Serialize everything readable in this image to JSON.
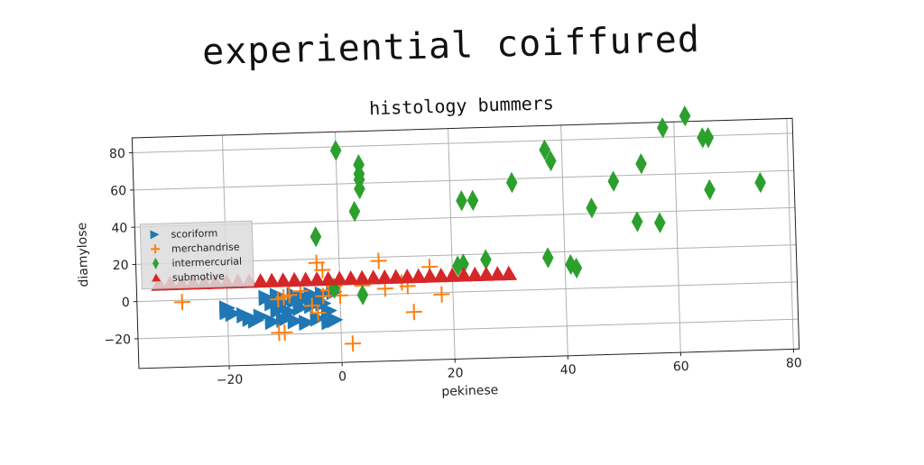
{
  "page_title": "experiential coiffured",
  "chart_data": {
    "type": "scatter",
    "title": "histology bummers",
    "xlabel": "pekinese",
    "ylabel": "diamylose",
    "xlim": [
      -36,
      81
    ],
    "ylim": [
      -36,
      88
    ],
    "xticks": [
      -20,
      0,
      20,
      40,
      60,
      80
    ],
    "yticks": [
      -20,
      0,
      20,
      40,
      60,
      80
    ],
    "grid": true,
    "legend_position": "center-left",
    "series": [
      {
        "name": "scoriform",
        "marker": "triangle-right",
        "color": "#1f77b4",
        "points": [
          [
            -20,
            -5
          ],
          [
            -20,
            -7
          ],
          [
            -19,
            -8
          ],
          [
            -17,
            -9
          ],
          [
            -15,
            -12
          ],
          [
            -12,
            -13
          ],
          [
            -10,
            -12
          ],
          [
            -8,
            -13
          ],
          [
            -6,
            -14
          ],
          [
            -4,
            -12
          ],
          [
            -2,
            -14
          ],
          [
            -1,
            -13
          ],
          [
            -11,
            -7
          ],
          [
            -9,
            -8
          ],
          [
            -7,
            -6
          ],
          [
            -5,
            -5
          ],
          [
            -3,
            -4
          ],
          [
            -2,
            -8
          ],
          [
            -12,
            -3
          ],
          [
            -10,
            -3
          ],
          [
            -8,
            -2
          ],
          [
            -6,
            -1
          ],
          [
            -4,
            -2
          ],
          [
            -13,
            0
          ],
          [
            -11,
            1
          ],
          [
            -8,
            1
          ],
          [
            -5,
            1
          ],
          [
            -3,
            1
          ],
          [
            -1,
            2
          ],
          [
            -14,
            -10
          ],
          [
            -16,
            -11
          ]
        ]
      },
      {
        "name": "merchandrise",
        "marker": "plus",
        "color": "#ff7f0e",
        "points": [
          [
            -28,
            -1
          ],
          [
            -11,
            -19
          ],
          [
            -10,
            -19
          ],
          [
            -11,
            -1
          ],
          [
            -10,
            0
          ],
          [
            -9,
            1
          ],
          [
            -5,
            -5
          ],
          [
            -4,
            -9
          ],
          [
            -3,
            0
          ],
          [
            -4,
            18
          ],
          [
            -3,
            14
          ],
          [
            -2,
            3
          ],
          [
            0,
            0
          ],
          [
            2,
            -26
          ],
          [
            4,
            5
          ],
          [
            7,
            18
          ],
          [
            8,
            3
          ],
          [
            11,
            6
          ],
          [
            12,
            4
          ],
          [
            13,
            -10
          ],
          [
            16,
            14
          ],
          [
            18,
            -1
          ],
          [
            -7,
            3
          ],
          [
            -1,
            5
          ]
        ]
      },
      {
        "name": "intermercurial",
        "marker": "diamond",
        "color": "#2ca02c",
        "points": [
          [
            0,
            78
          ],
          [
            4,
            70
          ],
          [
            4,
            65
          ],
          [
            4,
            62
          ],
          [
            4,
            57
          ],
          [
            3,
            45
          ],
          [
            -4,
            32
          ],
          [
            -1,
            4
          ],
          [
            4,
            0
          ],
          [
            22,
            49
          ],
          [
            24,
            49
          ],
          [
            21,
            14
          ],
          [
            22,
            15
          ],
          [
            26,
            17
          ],
          [
            31,
            58
          ],
          [
            37,
            75
          ],
          [
            38,
            69
          ],
          [
            37,
            17
          ],
          [
            41,
            13
          ],
          [
            42,
            11
          ],
          [
            45,
            43
          ],
          [
            49,
            57
          ],
          [
            53,
            35
          ],
          [
            54,
            66
          ],
          [
            57,
            34
          ],
          [
            58,
            85
          ],
          [
            62,
            91
          ],
          [
            65,
            79
          ],
          [
            66,
            79
          ],
          [
            66,
            51
          ],
          [
            75,
            54
          ]
        ]
      },
      {
        "name": "submotive",
        "marker": "triangle-up",
        "color": "#d62728",
        "points": [
          [
            -32,
            9
          ],
          [
            -30,
            9
          ],
          [
            -28,
            9
          ],
          [
            -26,
            9
          ],
          [
            -24,
            9
          ],
          [
            -22,
            9
          ],
          [
            -20,
            9
          ],
          [
            -18,
            9
          ],
          [
            -16,
            9
          ],
          [
            -14,
            9
          ],
          [
            -12,
            9
          ],
          [
            -10,
            9
          ],
          [
            -8,
            9
          ],
          [
            -6,
            9
          ],
          [
            -4,
            9
          ],
          [
            -2,
            9
          ],
          [
            0,
            9
          ],
          [
            2,
            9
          ],
          [
            4,
            9
          ],
          [
            6,
            9
          ],
          [
            8,
            9
          ],
          [
            10,
            9
          ],
          [
            12,
            9
          ],
          [
            14,
            9
          ],
          [
            16,
            9
          ],
          [
            18,
            9
          ],
          [
            20,
            9
          ],
          [
            22,
            9
          ],
          [
            24,
            9
          ],
          [
            26,
            9
          ],
          [
            28,
            9
          ],
          [
            30,
            9
          ]
        ]
      }
    ]
  }
}
